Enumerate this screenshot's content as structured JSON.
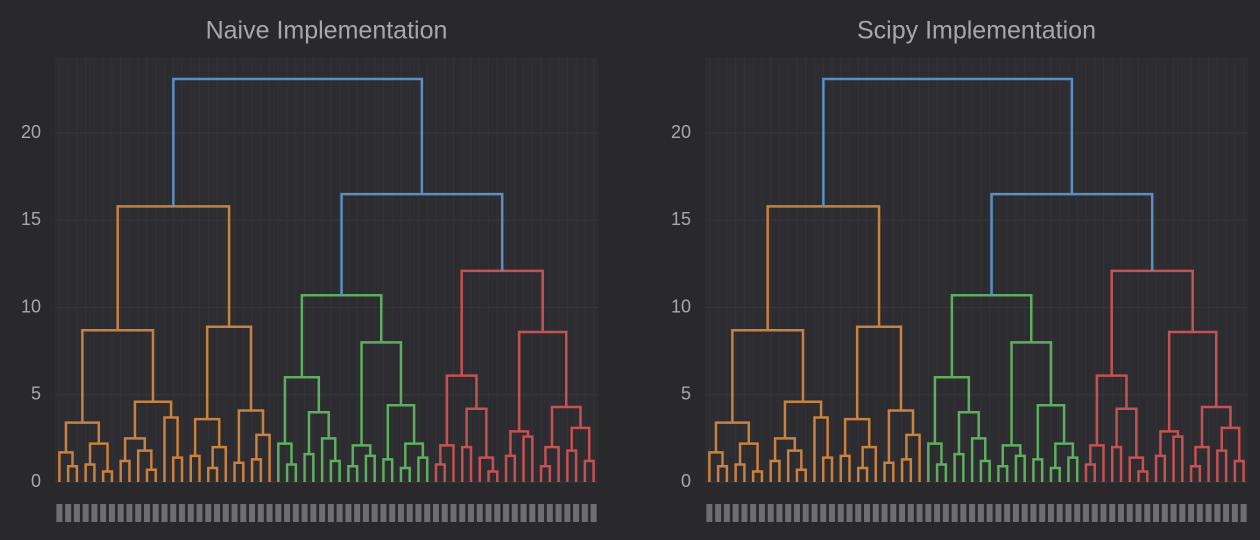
{
  "chart_data": [
    {
      "type": "dendrogram",
      "title": "Naive Implementation",
      "ylim": [
        0,
        24.3
      ],
      "yticks": [
        0,
        5,
        10,
        15,
        20
      ],
      "grid": true,
      "tree": [
        23.1,
        [
          15.8,
          [
            8.7,
            [
              3.4,
              [
                1.7,
                0,
                [
                  0.9,
                  0,
                  0
                ]
              ],
              [
                2.2,
                [
                  1.0,
                  0,
                  0
                ],
                [
                  0.6,
                  0,
                  0
                ]
              ]
            ],
            [
              4.6,
              [
                2.5,
                [
                  1.2,
                  0,
                  0
                ],
                [
                  1.8,
                  0,
                  [
                    0.7,
                    0,
                    0
                  ]
                ]
              ],
              [
                3.7,
                0,
                [
                  1.4,
                  0,
                  0
                ]
              ]
            ]
          ],
          [
            8.9,
            [
              3.6,
              [
                1.5,
                0,
                0
              ],
              [
                2.0,
                [
                  0.8,
                  0,
                  0
                ],
                0
              ]
            ],
            [
              4.1,
              [
                1.1,
                0,
                0
              ],
              [
                2.7,
                [
                  1.3,
                  0,
                  0
                ],
                0
              ]
            ]
          ],
          "#c8813f"
        ],
        [
          16.5,
          [
            10.7,
            [
              6.0,
              [
                2.2,
                0,
                [
                  1.0,
                  0,
                  0
                ]
              ],
              [
                4.0,
                [
                  1.6,
                  0,
                  0
                ],
                [
                  2.5,
                  0,
                  [
                    1.2,
                    0,
                    0
                  ]
                ]
              ]
            ],
            [
              8.0,
              [
                2.1,
                [
                  0.9,
                  0,
                  0
                ],
                [
                  1.5,
                  0,
                  0
                ]
              ],
              [
                4.4,
                [
                  1.3,
                  0,
                  0
                ],
                [
                  2.2,
                  [
                    0.8,
                    0,
                    0
                  ],
                  [
                    1.4,
                    0,
                    0
                  ]
                ]
              ]
            ],
            "#5fae5f"
          ],
          [
            12.1,
            [
              6.1,
              [
                2.1,
                [
                  1.0,
                  0,
                  0
                ],
                0
              ],
              [
                4.2,
                [
                  2.0,
                  0,
                  0
                ],
                [
                  1.4,
                  0,
                  [
                    0.6,
                    0,
                    0
                  ]
                ]
              ]
            ],
            [
              8.6,
              [
                2.9,
                [
                  1.5,
                  0,
                  0
                ],
                [
                  2.6,
                  0,
                  0
                ]
              ],
              [
                4.3,
                [
                  2.0,
                  [
                    0.9,
                    0,
                    0
                  ],
                  0
                ],
                [
                  3.1,
                  [
                    1.8,
                    0,
                    0
                  ],
                  [
                    1.2,
                    0,
                    0
                  ]
                ]
              ]
            ],
            "#c45252"
          ]
        ],
        "#5b8fc4"
      ]
    },
    {
      "type": "dendrogram",
      "title": "Scipy Implementation",
      "ylim": [
        0,
        24.3
      ],
      "yticks": [
        0,
        5,
        10,
        15,
        20
      ],
      "grid": true,
      "tree": [
        23.1,
        [
          15.8,
          [
            8.7,
            [
              3.4,
              [
                1.7,
                0,
                [
                  0.9,
                  0,
                  0
                ]
              ],
              [
                2.2,
                [
                  1.0,
                  0,
                  0
                ],
                [
                  0.6,
                  0,
                  0
                ]
              ]
            ],
            [
              4.6,
              [
                2.5,
                [
                  1.2,
                  0,
                  0
                ],
                [
                  1.8,
                  0,
                  [
                    0.7,
                    0,
                    0
                  ]
                ]
              ],
              [
                3.7,
                0,
                [
                  1.4,
                  0,
                  0
                ]
              ]
            ]
          ],
          [
            8.9,
            [
              3.6,
              [
                1.5,
                0,
                0
              ],
              [
                2.0,
                [
                  0.8,
                  0,
                  0
                ],
                0
              ]
            ],
            [
              4.1,
              [
                1.1,
                0,
                0
              ],
              [
                2.7,
                [
                  1.3,
                  0,
                  0
                ],
                0
              ]
            ]
          ],
          "#c8813f"
        ],
        [
          16.5,
          [
            10.7,
            [
              6.0,
              [
                2.2,
                0,
                [
                  1.0,
                  0,
                  0
                ]
              ],
              [
                4.0,
                [
                  1.6,
                  0,
                  0
                ],
                [
                  2.5,
                  0,
                  [
                    1.2,
                    0,
                    0
                  ]
                ]
              ]
            ],
            [
              8.0,
              [
                2.1,
                [
                  0.9,
                  0,
                  0
                ],
                [
                  1.5,
                  0,
                  0
                ]
              ],
              [
                4.4,
                [
                  1.3,
                  0,
                  0
                ],
                [
                  2.2,
                  [
                    0.8,
                    0,
                    0
                  ],
                  [
                    1.4,
                    0,
                    0
                  ]
                ]
              ]
            ],
            "#5fae5f"
          ],
          [
            12.1,
            [
              6.1,
              [
                2.1,
                [
                  1.0,
                  0,
                  0
                ],
                0
              ],
              [
                4.2,
                [
                  2.0,
                  0,
                  0
                ],
                [
                  1.4,
                  0,
                  [
                    0.6,
                    0,
                    0
                  ]
                ]
              ]
            ],
            [
              8.6,
              [
                2.9,
                [
                  1.5,
                  0,
                  0
                ],
                [
                  2.6,
                  0,
                  0
                ]
              ],
              [
                4.3,
                [
                  2.0,
                  [
                    0.9,
                    0,
                    0
                  ],
                  0
                ],
                [
                  3.1,
                  [
                    1.8,
                    0,
                    0
                  ],
                  [
                    1.2,
                    0,
                    0
                  ]
                ]
              ]
            ],
            "#c45252"
          ]
        ],
        "#5b8fc4"
      ]
    }
  ]
}
